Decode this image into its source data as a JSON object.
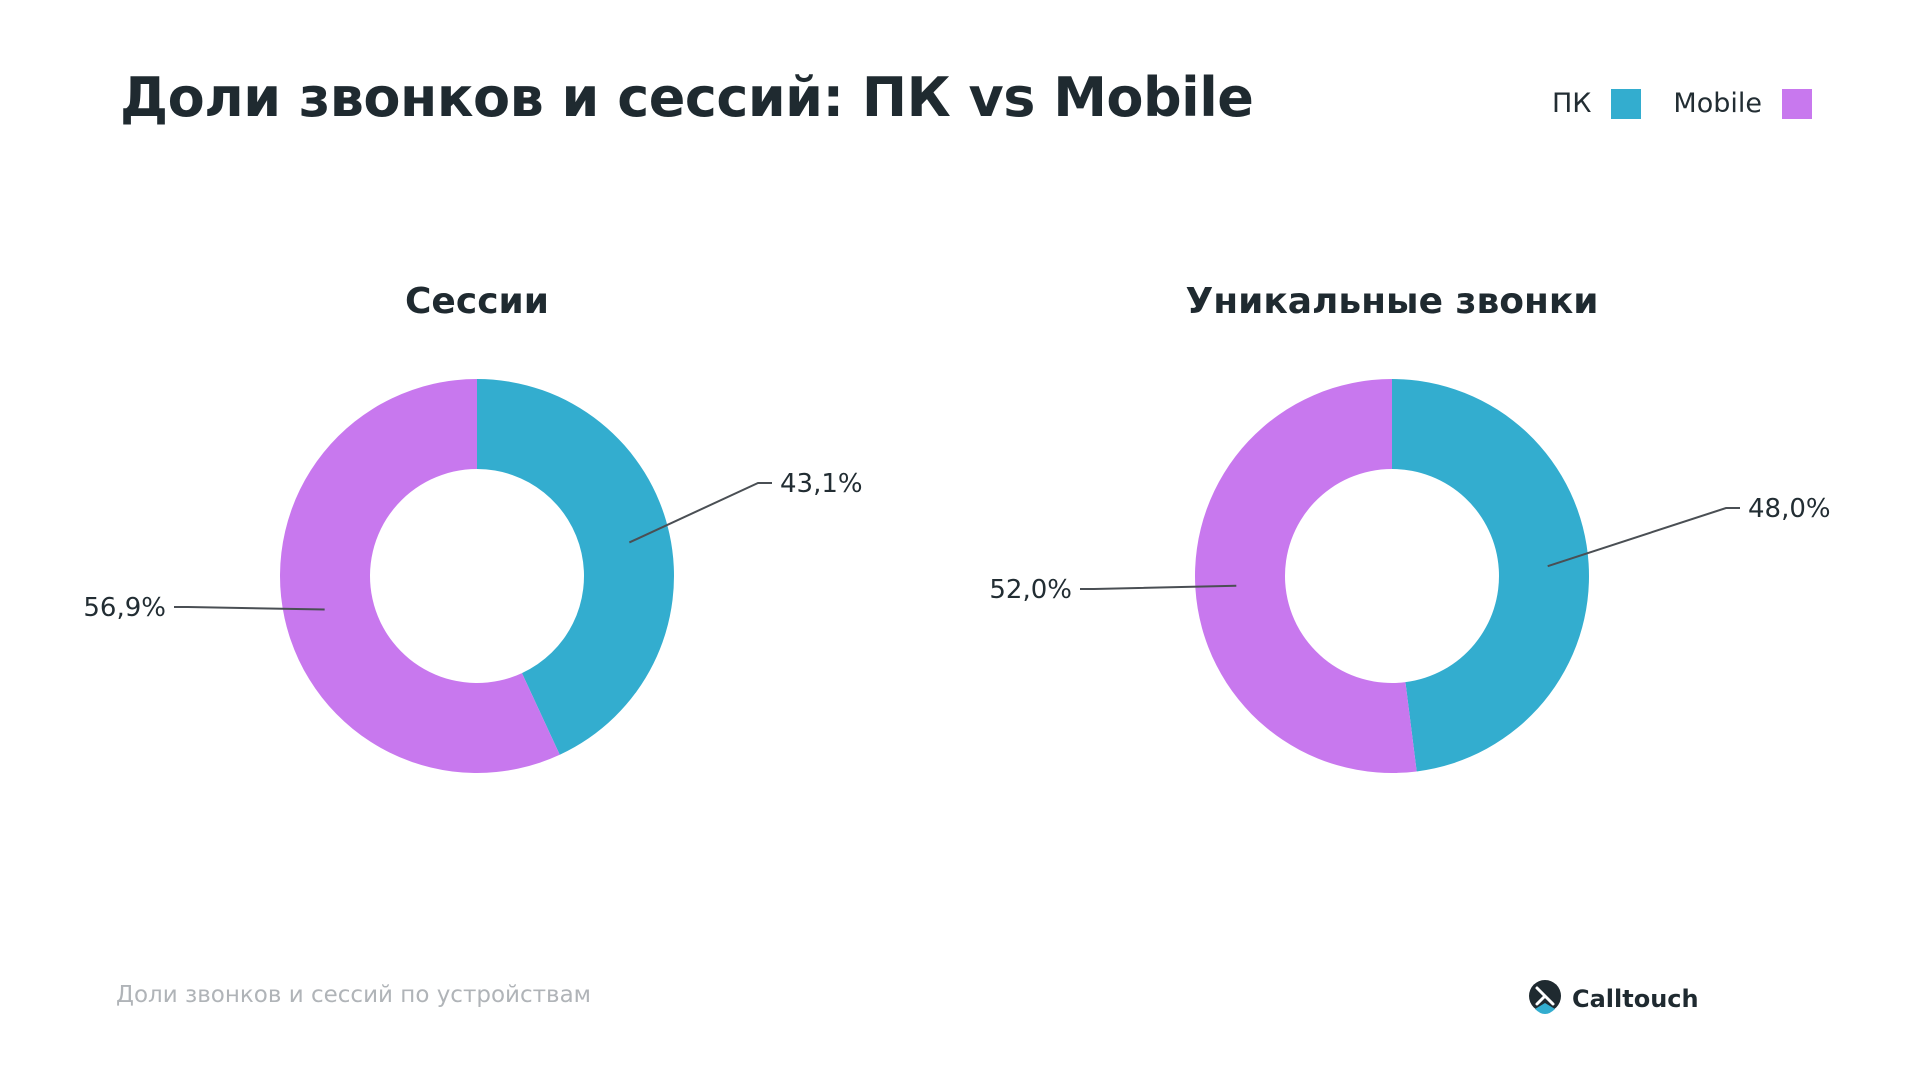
{
  "header": {
    "title": "Доли звонков и сессий: ПК vs Mobile"
  },
  "legend": [
    {
      "label": "ПК",
      "color": "#33adcf"
    },
    {
      "label": "Mobile",
      "color": "#c878ee"
    }
  ],
  "chart_data": [
    {
      "type": "pie",
      "title": "Сессии",
      "donut": true,
      "categories": [
        "ПК",
        "Mobile"
      ],
      "values": [
        43.1,
        56.9
      ],
      "labels": [
        "43,1%",
        "56,9%"
      ],
      "colors": [
        "#33adcf",
        "#c878ee"
      ]
    },
    {
      "type": "pie",
      "title": "Уникальные звонки",
      "donut": true,
      "categories": [
        "ПК",
        "Mobile"
      ],
      "values": [
        48.0,
        52.0
      ],
      "labels": [
        "48,0%",
        "52,0%"
      ],
      "colors": [
        "#33adcf",
        "#c878ee"
      ]
    }
  ],
  "footer": {
    "caption": "Доли звонков и сессий по устройствам",
    "brand": "Calltouch",
    "brand_icon": "calltouch-logo-icon"
  }
}
